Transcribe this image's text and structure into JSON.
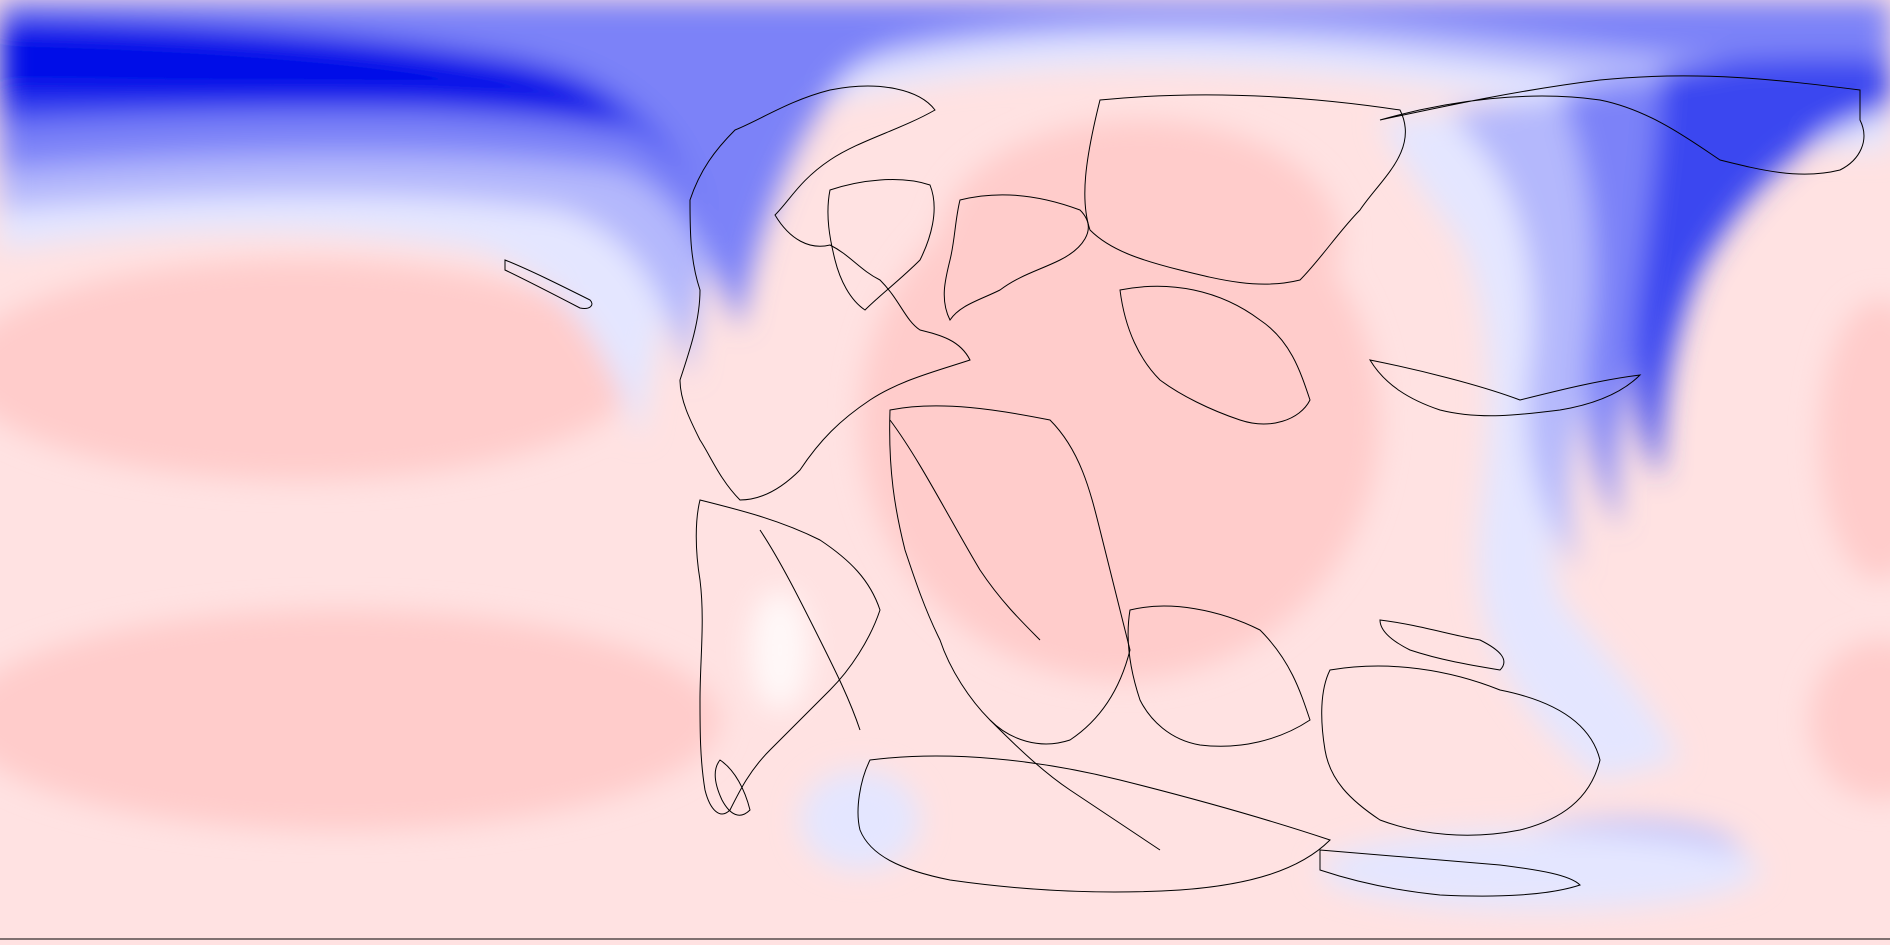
{
  "map": {
    "projection": "equirectangular",
    "background_color": "#ffffff",
    "outline_color": "#000000",
    "palette": {
      "deep_blue": "#0010e8",
      "blue": "#3b46f0",
      "mid_blue": "#7c82f8",
      "light_blue": "#b4b8fc",
      "pale_blue": "#e4e6ff",
      "white": "#fff8f8",
      "pale_red": "#ffe2e2",
      "light_red": "#ffcccb"
    },
    "legend": null
  }
}
